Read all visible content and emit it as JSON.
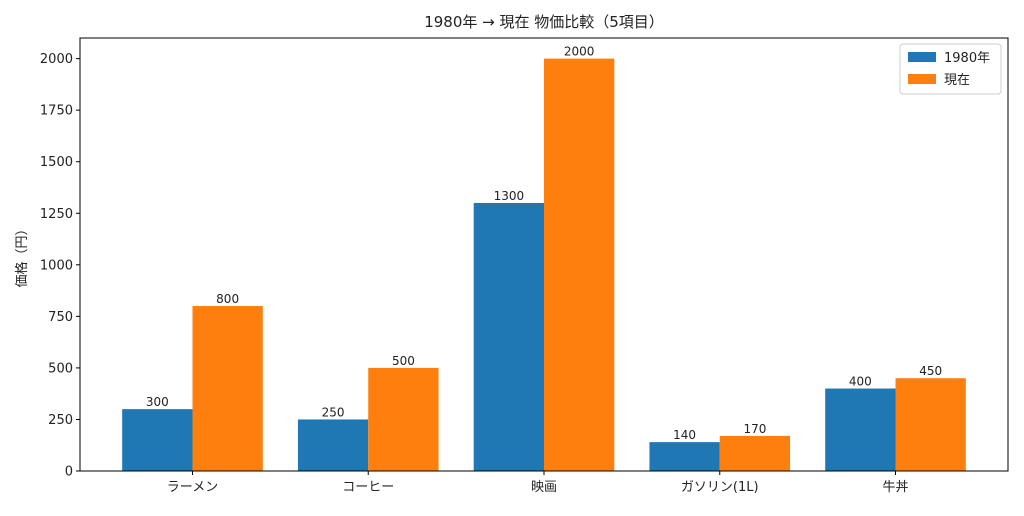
{
  "chart_data": {
    "type": "bar",
    "title": "1980年 → 現在 物価比較（5項目）",
    "xlabel": "",
    "ylabel": "価格（円）",
    "categories": [
      "ラーメン",
      "コーヒー",
      "映画",
      "ガソリン(1L)",
      "牛丼"
    ],
    "series": [
      {
        "name": "1980年",
        "color": "#1f77b4",
        "values": [
          300,
          250,
          1300,
          140,
          400
        ]
      },
      {
        "name": "現在",
        "color": "#ff7f0e",
        "values": [
          800,
          500,
          2000,
          170,
          450
        ]
      }
    ],
    "ylim": [
      0,
      2100
    ],
    "yticks": [
      0,
      250,
      500,
      750,
      1000,
      1250,
      1500,
      1750,
      2000
    ],
    "grid": false,
    "legend": "top-right",
    "data_labels": true
  }
}
